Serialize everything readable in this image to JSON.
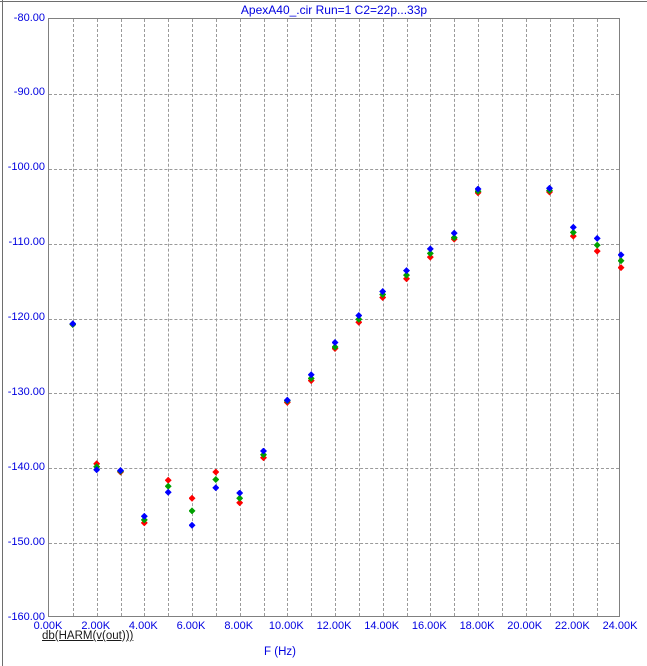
{
  "window": {
    "bg_color": "#ffffff",
    "frame_color": "#6e6e6e"
  },
  "chart_data": {
    "type": "scatter",
    "title": "ApexA40_.cir Run=1 C2=22p...33p",
    "xlabel": "F (Hz)",
    "trace_label": "db(HARM(v(out)))",
    "marker_shape": "diamond",
    "grid": "dashed",
    "legend": "none",
    "xlim_khz": [
      0,
      24
    ],
    "ylim_db": [
      -160,
      -80
    ],
    "x_gridline_step_khz": 1,
    "x_label_step_khz": 2,
    "x_tick_suffix": "K",
    "y_gridline_step_db": 10,
    "accent_text_color": "#0000e0",
    "gridline_color": "#9a9a9a",
    "frequencies_khz": [
      1,
      2,
      3,
      4,
      5,
      6,
      7,
      8,
      9,
      10,
      11,
      12,
      13,
      14,
      15,
      16,
      17,
      18,
      19,
      20,
      21,
      22,
      23,
      24
    ],
    "series": [
      {
        "name": "series-red",
        "color": "#ff0000",
        "values": [
          -120.8,
          -139.4,
          -140.5,
          -147.3,
          -141.6,
          -144.0,
          -140.5,
          -144.6,
          -138.6,
          -131.2,
          -128.3,
          -124.0,
          -120.5,
          -117.2,
          -114.7,
          -111.8,
          -109.4,
          -103.2,
          null,
          null,
          -103.1,
          -109.0,
          -111.0,
          -113.2
        ]
      },
      {
        "name": "series-green",
        "color": "#00a000",
        "values": [
          -120.8,
          -139.8,
          -140.4,
          -146.9,
          -142.4,
          -145.7,
          -141.5,
          -144.0,
          -138.2,
          -131.0,
          -128.0,
          -123.8,
          -120.1,
          -116.8,
          -114.2,
          -111.3,
          -109.2,
          -103.0,
          null,
          null,
          -102.9,
          -108.5,
          -110.2,
          -112.3
        ]
      },
      {
        "name": "series-blue",
        "color": "#0000ff",
        "values": [
          -120.7,
          -140.2,
          -140.3,
          -146.4,
          -143.2,
          -147.6,
          -142.6,
          -143.3,
          -137.7,
          -130.9,
          -127.5,
          -123.2,
          -119.6,
          -116.4,
          -113.6,
          -110.7,
          -108.6,
          -102.7,
          null,
          null,
          -102.6,
          -107.8,
          -109.3,
          -111.5
        ]
      }
    ]
  }
}
